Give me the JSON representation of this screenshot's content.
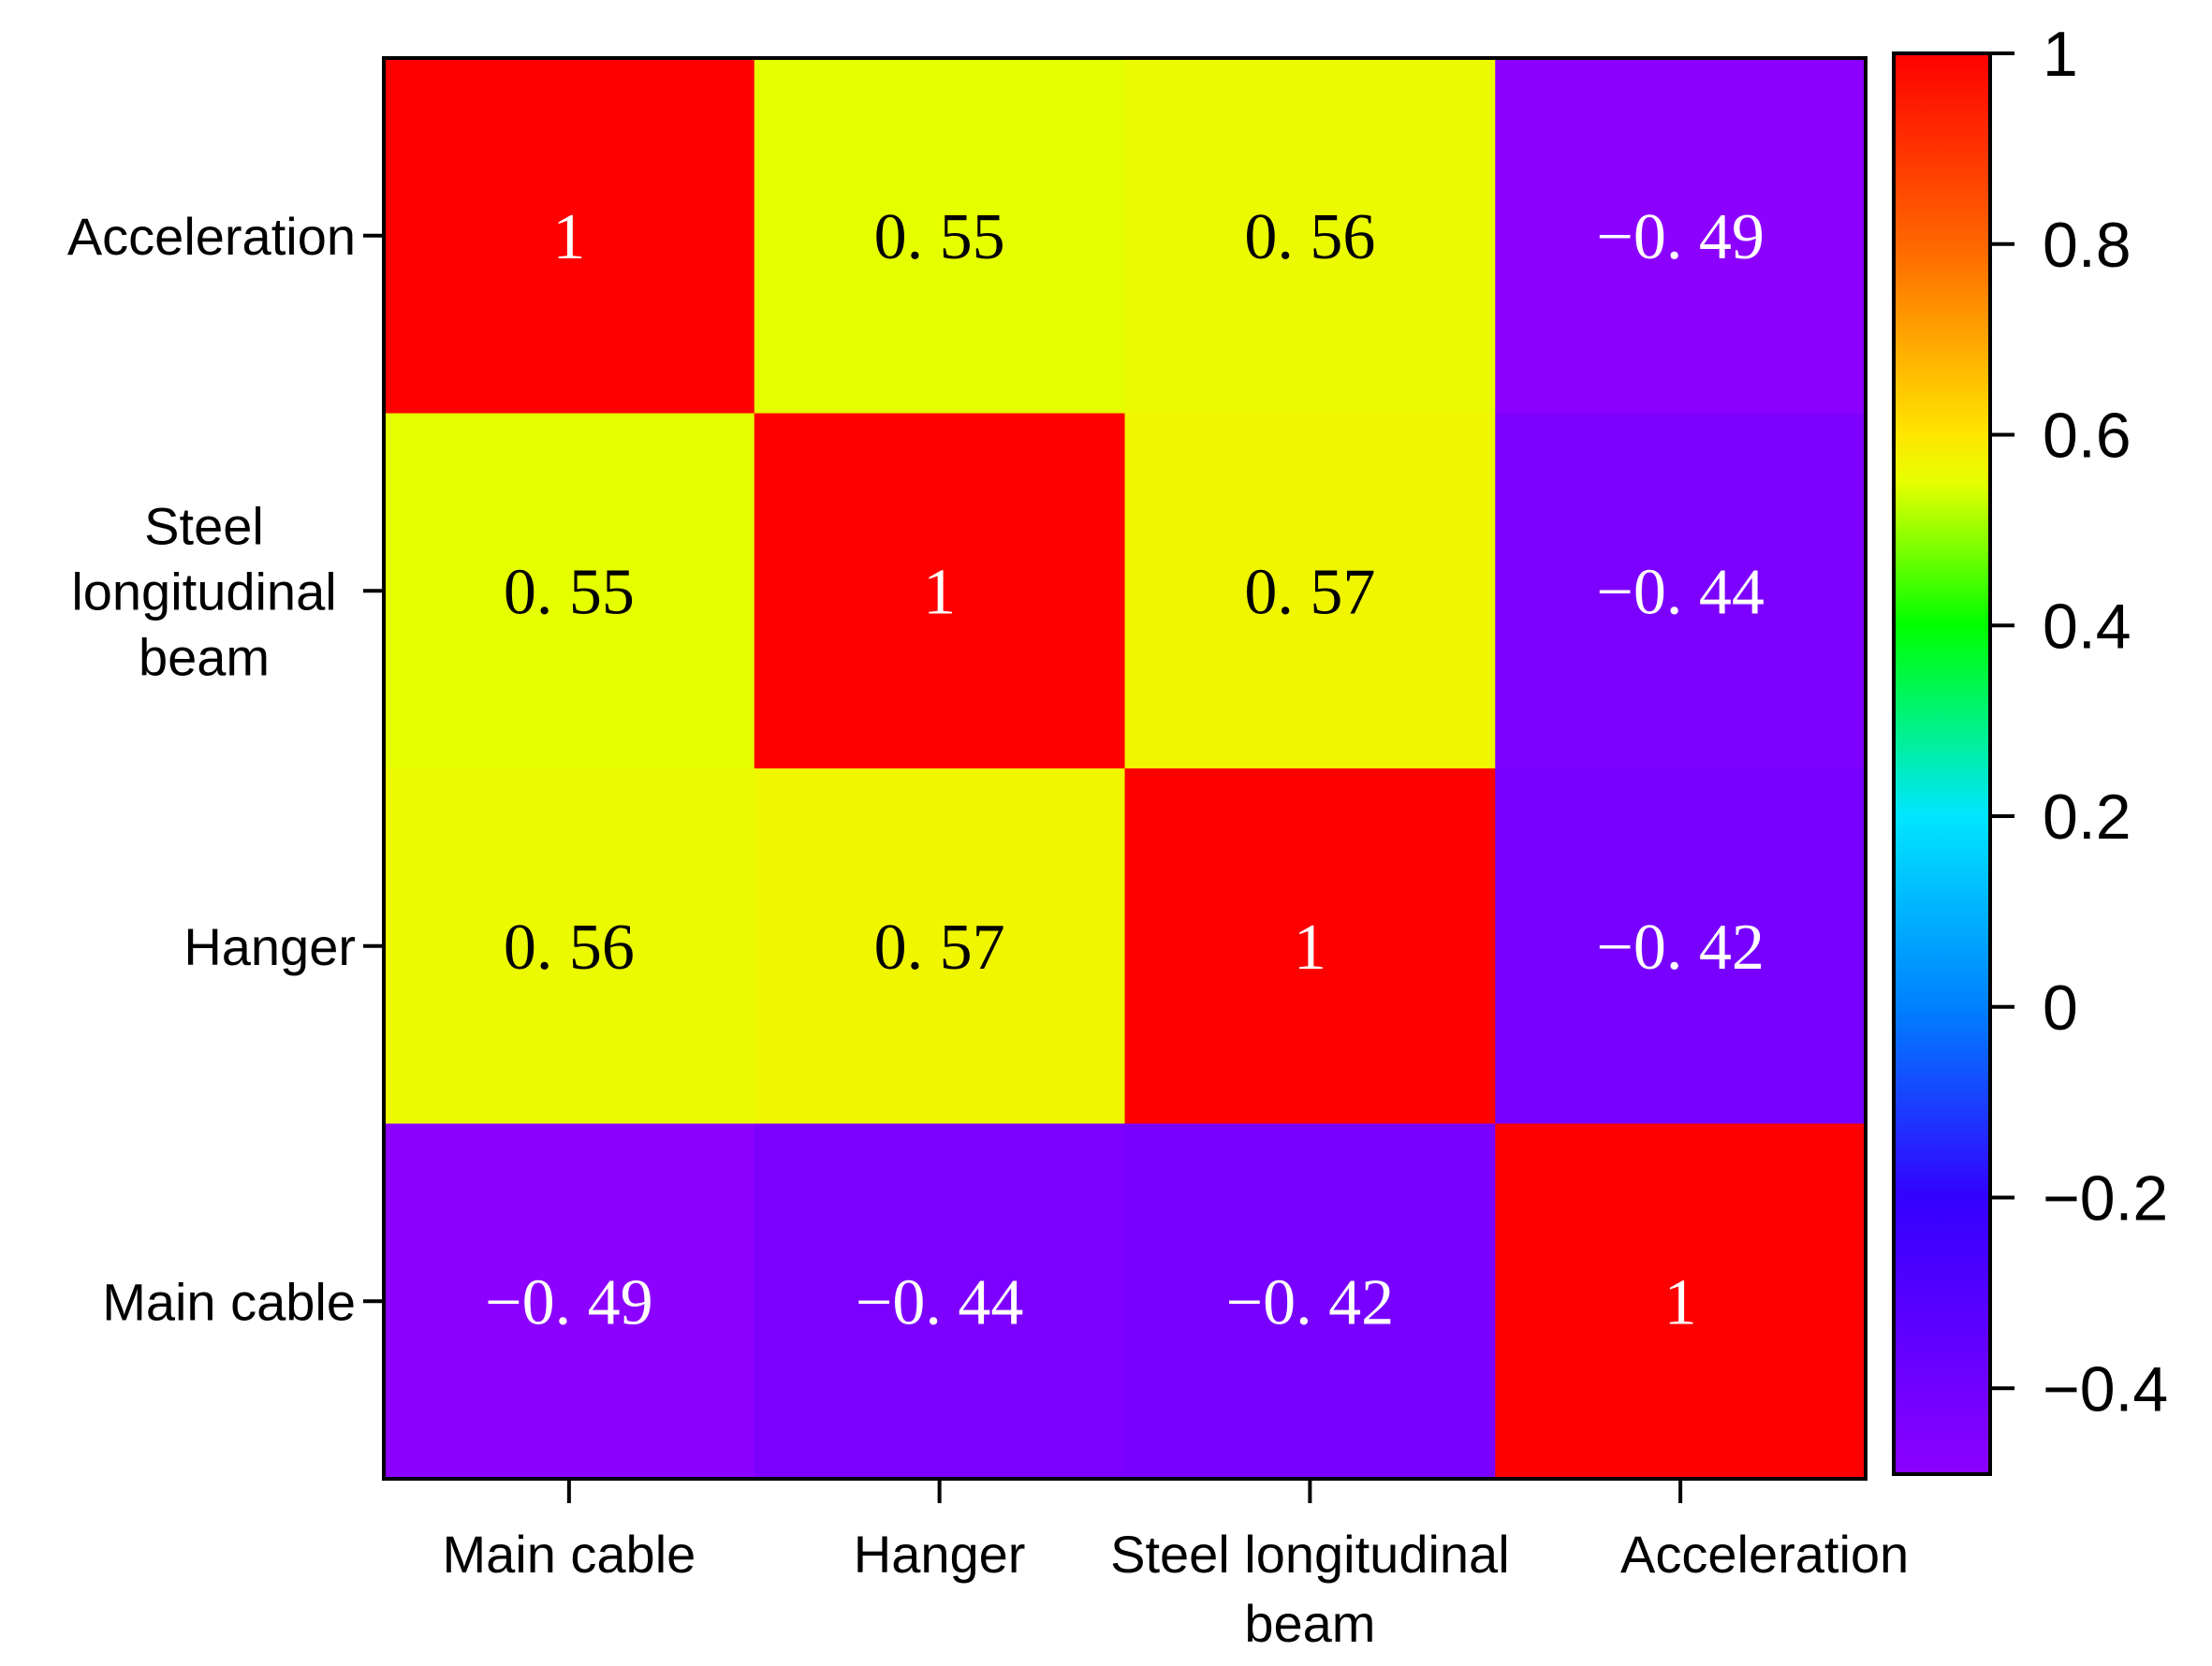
{
  "chart_data": {
    "type": "heatmap",
    "x_categories": [
      "Main cable",
      "Hanger",
      "Steel longitudinal beam",
      "Acceleration"
    ],
    "x_tick_lines": [
      [
        "Main cable"
      ],
      [
        "Hanger"
      ],
      [
        "Steel longitudinal",
        "beam"
      ],
      [
        "Acceleration"
      ]
    ],
    "y_categories_top_to_bottom": [
      "Acceleration",
      "Steel longitudinal beam",
      "Hanger",
      "Main cable"
    ],
    "y_tick_lines": [
      [
        "Acceleration"
      ],
      [
        "Steel",
        "longitudinal",
        "beam"
      ],
      [
        "Hanger"
      ],
      [
        "Main cable"
      ]
    ],
    "matrix_top_to_bottom": [
      [
        1,
        0.55,
        0.56,
        -0.49
      ],
      [
        0.55,
        1,
        0.57,
        -0.44
      ],
      [
        0.56,
        0.57,
        1,
        -0.42
      ],
      [
        -0.49,
        -0.44,
        -0.42,
        1
      ]
    ],
    "cell_labels": [
      [
        "1",
        "0. 55",
        "0. 56",
        "−0. 49"
      ],
      [
        "0. 55",
        "1",
        "0. 57",
        "−0. 44"
      ],
      [
        "0. 56",
        "0. 57",
        "1",
        "−0. 42"
      ],
      [
        "−0. 49",
        "−0. 44",
        "−0. 42",
        "1"
      ]
    ],
    "colorbar": {
      "min": -0.49,
      "max": 1,
      "ticks": [
        1,
        0.8,
        0.6,
        0.4,
        0.2,
        0,
        -0.2,
        -0.4
      ],
      "tick_labels": [
        "1",
        "0.8",
        "0.6",
        "0.4",
        "0.2",
        "0",
        "−0.2",
        "−0.4"
      ],
      "stops": [
        {
          "value": -0.49,
          "color": "#8c00ff"
        },
        {
          "value": -0.2,
          "color": "#3300ff"
        },
        {
          "value": 0,
          "color": "#0080ff"
        },
        {
          "value": 0.2,
          "color": "#00e6ff"
        },
        {
          "value": 0.4,
          "color": "#00ff00"
        },
        {
          "value": 0.55,
          "color": "#e6ff00"
        },
        {
          "value": 0.6,
          "color": "#ffe600"
        },
        {
          "value": 0.8,
          "color": "#ff6600"
        },
        {
          "value": 1,
          "color": "#ff0000"
        }
      ]
    },
    "title": "",
    "xlabel": "",
    "ylabel": ""
  }
}
